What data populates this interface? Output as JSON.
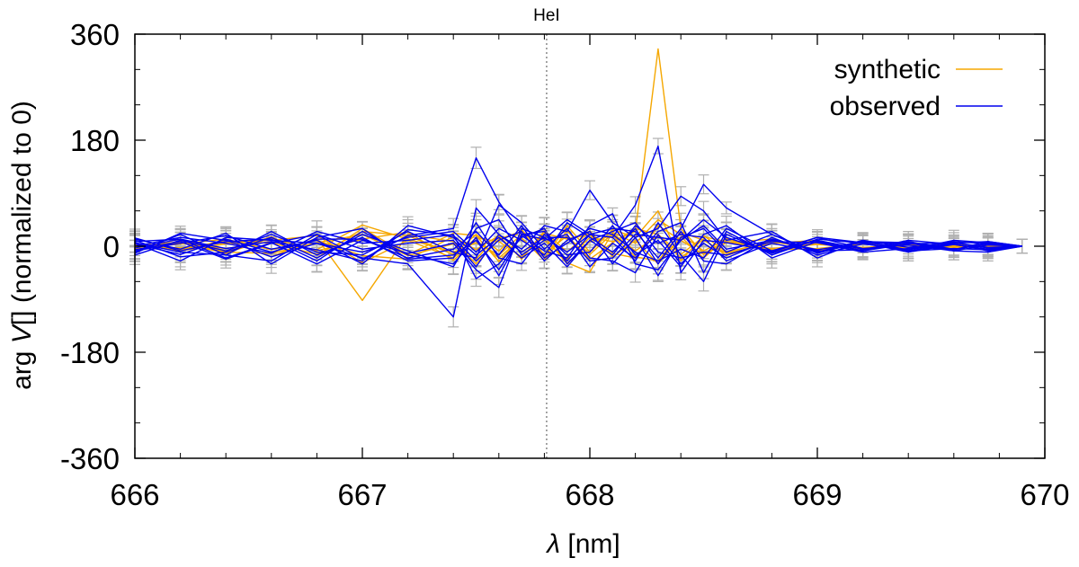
{
  "chart_data": {
    "type": "line",
    "title": "",
    "xlabel_symbol": "λ",
    "xlabel_rest": " [nm]",
    "ylabel_prefix": "arg ",
    "ylabel_symbol": "V",
    "ylabel_rest": "[] (normalized to 0)",
    "xlim": [
      666,
      670
    ],
    "ylim": [
      -360,
      360
    ],
    "x_ticks": [
      666,
      667,
      668,
      669,
      670
    ],
    "x_minor_step": 0.2,
    "y_ticks": [
      -360,
      -180,
      0,
      180,
      360
    ],
    "y_minor_step": 60,
    "annotation": {
      "text": "HeI",
      "x": 667.81
    },
    "legend": {
      "position": "top-right",
      "entries": [
        {
          "label": "synthetic",
          "color": "#f5a700"
        },
        {
          "label": "observed",
          "color": "#0000ee"
        }
      ]
    },
    "colors": {
      "synthetic": "#f5a700",
      "observed": "#0000ee",
      "errorbar": "#b0b0b0",
      "marker_line": "#777777"
    },
    "x": [
      666.0,
      666.2,
      666.4,
      666.6,
      666.8,
      667.0,
      667.2,
      667.4,
      667.5,
      667.6,
      667.7,
      667.8,
      667.9,
      668.0,
      668.1,
      668.2,
      668.3,
      668.4,
      668.5,
      668.6,
      668.8,
      669.0,
      669.2,
      669.4,
      669.6,
      669.75,
      669.9
    ],
    "series": [
      {
        "name": "synthetic",
        "values": [
          0,
          5,
          -4,
          8,
          -6,
          36,
          12,
          -10,
          6,
          -15,
          20,
          10,
          -22,
          15,
          8,
          25,
          335,
          30,
          -12,
          6,
          -4,
          3,
          -2,
          2,
          0,
          1,
          0
        ]
      },
      {
        "name": "synthetic",
        "values": [
          3,
          -6,
          10,
          -18,
          14,
          -92,
          20,
          8,
          -30,
          12,
          25,
          -20,
          35,
          -10,
          28,
          15,
          60,
          -25,
          18,
          -10,
          8,
          -5,
          4,
          -3,
          2,
          0,
          0
        ]
      },
      {
        "name": "synthetic",
        "values": [
          -4,
          12,
          -8,
          16,
          -20,
          30,
          -14,
          22,
          18,
          -26,
          15,
          30,
          -28,
          -44,
          24,
          5,
          45,
          20,
          -8,
          12,
          -10,
          6,
          -4,
          3,
          -1,
          1,
          0
        ]
      },
      {
        "name": "synthetic",
        "values": [
          2,
          -3,
          6,
          10,
          18,
          -28,
          10,
          -20,
          14,
          8,
          -18,
          22,
          12,
          20,
          -12,
          -20,
          35,
          10,
          -14,
          6,
          12,
          -8,
          5,
          -2,
          3,
          0,
          0
        ]
      },
      {
        "name": "synthetic",
        "values": [
          -2,
          8,
          -10,
          -12,
          6,
          20,
          -16,
          4,
          -22,
          20,
          -10,
          16,
          -30,
          8,
          18,
          -18,
          -25,
          24,
          10,
          -12,
          5,
          10,
          -6,
          4,
          -2,
          1,
          0
        ]
      },
      {
        "name": "synthetic",
        "values": [
          5,
          -8,
          4,
          6,
          -14,
          25,
          18,
          -14,
          20,
          -8,
          28,
          -14,
          18,
          -22,
          6,
          30,
          20,
          -14,
          16,
          8,
          -6,
          -4,
          4,
          -3,
          2,
          0,
          0
        ]
      },
      {
        "name": "synthetic",
        "values": [
          -5,
          4,
          12,
          -6,
          10,
          -16,
          -22,
          16,
          -6,
          18,
          -22,
          26,
          -10,
          26,
          -18,
          10,
          -30,
          16,
          -20,
          14,
          -8,
          6,
          -3,
          3,
          -2,
          1,
          0
        ]
      },
      {
        "name": "synthetic",
        "values": [
          1,
          6,
          -12,
          14,
          -8,
          12,
          24,
          -24,
          10,
          -20,
          14,
          -24,
          26,
          -14,
          22,
          -8,
          18,
          -20,
          12,
          -16,
          10,
          -6,
          4,
          -4,
          2,
          -1,
          0
        ]
      },
      {
        "name": "observed",
        "values": [
          8,
          12,
          -20,
          6,
          -30,
          10,
          -12,
          5,
          -40,
          -70,
          30,
          15,
          -10,
          20,
          15,
          70,
          170,
          -45,
          10,
          6,
          -8,
          10,
          -5,
          6,
          -8,
          -10,
          0
        ]
      },
      {
        "name": "observed",
        "values": [
          -10,
          20,
          -15,
          -25,
          20,
          -22,
          18,
          30,
          150,
          75,
          20,
          12,
          45,
          20,
          30,
          25,
          -20,
          30,
          105,
          65,
          20,
          -12,
          8,
          -6,
          10,
          6,
          0
        ]
      },
      {
        "name": "observed",
        "values": [
          5,
          -25,
          15,
          10,
          5,
          -20,
          -30,
          -120,
          65,
          20,
          -5,
          35,
          25,
          95,
          40,
          15,
          30,
          85,
          60,
          10,
          25,
          -20,
          10,
          -8,
          4,
          -8,
          0
        ]
      },
      {
        "name": "observed",
        "values": [
          12,
          -5,
          22,
          -30,
          15,
          30,
          -22,
          -15,
          10,
          -40,
          18,
          -8,
          -20,
          35,
          55,
          -30,
          -40,
          10,
          45,
          15,
          -10,
          15,
          6,
          5,
          -6,
          8,
          0
        ]
      },
      {
        "name": "observed",
        "values": [
          -15,
          10,
          -8,
          20,
          -10,
          -15,
          25,
          -10,
          -20,
          70,
          40,
          -5,
          30,
          -20,
          -25,
          -45,
          20,
          -30,
          5,
          -20,
          12,
          -8,
          -6,
          10,
          3,
          -5,
          0
        ]
      },
      {
        "name": "observed",
        "values": [
          0,
          15,
          5,
          -12,
          25,
          5,
          10,
          20,
          -55,
          -30,
          15,
          30,
          -30,
          10,
          25,
          40,
          -10,
          -20,
          -10,
          -15,
          8,
          6,
          -10,
          -4,
          8,
          4,
          0
        ]
      },
      {
        "name": "observed",
        "values": [
          10,
          -18,
          -10,
          15,
          -20,
          20,
          -8,
          -35,
          30,
          45,
          -15,
          10,
          20,
          -35,
          5,
          -20,
          25,
          40,
          -45,
          25,
          -15,
          12,
          5,
          -8,
          -4,
          -6,
          0
        ]
      },
      {
        "name": "observed",
        "values": [
          -8,
          5,
          18,
          -5,
          10,
          -30,
          35,
          15,
          -25,
          10,
          25,
          -25,
          10,
          25,
          -30,
          15,
          -50,
          15,
          30,
          -10,
          20,
          -10,
          8,
          6,
          -6,
          5,
          0
        ]
      },
      {
        "name": "observed",
        "values": [
          6,
          -10,
          -15,
          25,
          -15,
          15,
          -25,
          -20,
          40,
          -20,
          -30,
          20,
          -15,
          -10,
          35,
          -15,
          10,
          -35,
          20,
          35,
          -20,
          8,
          -8,
          4,
          6,
          -3,
          0
        ]
      },
      {
        "name": "observed",
        "values": [
          -12,
          22,
          10,
          -18,
          5,
          -10,
          15,
          25,
          -10,
          30,
          10,
          -15,
          40,
          15,
          -10,
          30,
          -30,
          25,
          -25,
          -30,
          15,
          -15,
          4,
          -6,
          5,
          8,
          0
        ]
      },
      {
        "name": "observed",
        "values": [
          14,
          -8,
          8,
          12,
          -25,
          25,
          -15,
          -30,
          15,
          -50,
          20,
          25,
          -25,
          20,
          15,
          -25,
          40,
          -15,
          -60,
          20,
          -12,
          10,
          -8,
          8,
          -5,
          4,
          0
        ]
      },
      {
        "name": "observed",
        "values": [
          -6,
          8,
          -22,
          5,
          20,
          -5,
          5,
          10,
          -35,
          20,
          -10,
          15,
          15,
          -25,
          -20,
          20,
          15,
          10,
          35,
          -5,
          10,
          -6,
          6,
          -10,
          3,
          -6,
          0
        ]
      },
      {
        "name": "observed",
        "values": [
          4,
          -14,
          12,
          -10,
          12,
          12,
          -20,
          -5,
          25,
          -15,
          35,
          -20,
          5,
          30,
          20,
          -10,
          -25,
          -5,
          -20,
          30,
          -8,
          15,
          -4,
          2,
          -8,
          2,
          0
        ]
      },
      {
        "name": "observed",
        "values": [
          -3,
          12,
          -4,
          8,
          -6,
          -25,
          28,
          18,
          -15,
          15,
          -20,
          5,
          -35,
          10,
          -15,
          35,
          5,
          20,
          15,
          -25,
          5,
          -10,
          10,
          -2,
          6,
          -2,
          0
        ]
      }
    ]
  }
}
